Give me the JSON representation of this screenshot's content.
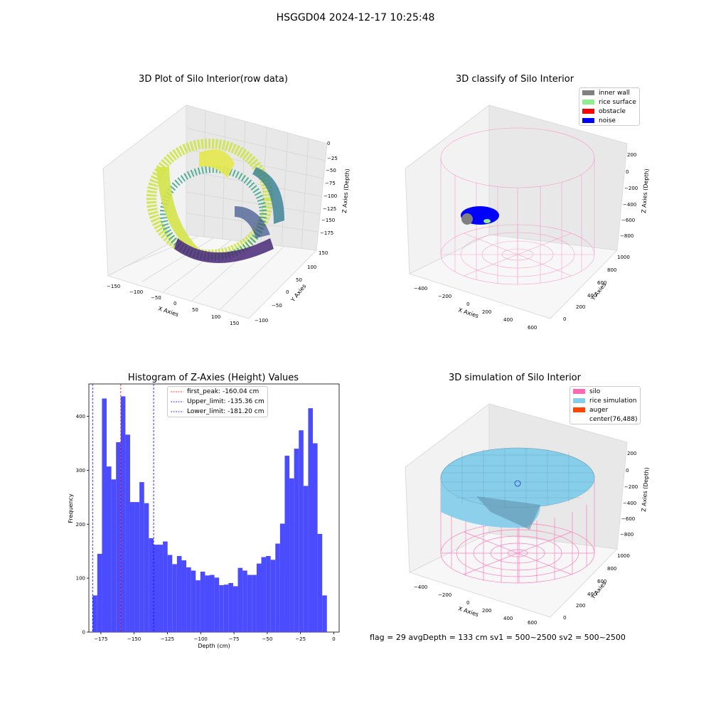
{
  "suptitle": "HSGGD04 2024-12-17 10:25:48",
  "panels": {
    "raw": {
      "title": "3D Plot of Silo Interior(row data)",
      "x_label": "X Axies",
      "y_label": "Y Axies",
      "z_label": "Z Axies (Depth)",
      "x_ticks": [
        "−150",
        "−100",
        "−50",
        "0",
        "50",
        "100",
        "150"
      ],
      "y_ticks": [
        "150",
        "100",
        "50",
        "0",
        "−50",
        "−100"
      ],
      "z_ticks": [
        "0",
        "−25",
        "−50",
        "−75",
        "−100",
        "−125",
        "−150",
        "−175"
      ]
    },
    "classify": {
      "title": "3D classify of Silo Interior",
      "x_label": "X Axies",
      "y_label": "Y Axies",
      "z_label": "Z Axies (Depth)",
      "x_ticks": [
        "−400",
        "−200",
        "0",
        "200",
        "400",
        "600"
      ],
      "y_ticks": [
        "1000",
        "800",
        "600",
        "400",
        "200",
        "0"
      ],
      "z_ticks": [
        "200",
        "0",
        "−200",
        "−400",
        "−600",
        "−800"
      ],
      "legend": [
        {
          "label": "inner wall",
          "color": "#808080"
        },
        {
          "label": "rice surface",
          "color": "#90ee90"
        },
        {
          "label": "obstacle",
          "color": "#ff0000"
        },
        {
          "label": "noise",
          "color": "#0000ff"
        }
      ]
    },
    "simulation": {
      "title": "3D simulation of Silo Interior",
      "x_label": "X Axies",
      "y_label": "Y Axies",
      "z_label": "Z Axies (Depth)",
      "x_ticks": [
        "−400",
        "−200",
        "0",
        "200",
        "400",
        "600"
      ],
      "y_ticks": [
        "1000",
        "800",
        "600",
        "400",
        "200",
        "0"
      ],
      "z_ticks": [
        "200",
        "0",
        "−200",
        "−400",
        "−600",
        "−800"
      ],
      "legend": [
        {
          "label": "silo",
          "color": "#ff69b4"
        },
        {
          "label": "rice simulation",
          "color": "#87ceeb"
        },
        {
          "label": "auger",
          "color": "#ff4500"
        },
        {
          "label": "center(76,488)",
          "color": "#ffffff"
        }
      ]
    }
  },
  "chart_data": {
    "type": "bar",
    "title": "Histogram of Z-Axies (Height) Values",
    "xlabel": "Depth (cm)",
    "ylabel": "Frequency",
    "xlim": [
      -184,
      4
    ],
    "ylim": [
      0,
      460
    ],
    "x_ticks": [
      -175,
      -150,
      -125,
      -100,
      -75,
      -50,
      -25,
      0
    ],
    "x_tick_labels": [
      "−175",
      "−150",
      "−125",
      "−100",
      "−75",
      "−50",
      "−25",
      "0"
    ],
    "y_ticks": [
      0,
      100,
      200,
      300,
      400
    ],
    "bar_color": "#4b4bff",
    "bins_start": -181.2,
    "bin_width": 3.52,
    "values": [
      68,
      145,
      433,
      307,
      283,
      352,
      437,
      366,
      241,
      241,
      278,
      239,
      174,
      162,
      162,
      168,
      143,
      126,
      141,
      133,
      120,
      114,
      96,
      112,
      105,
      106,
      101,
      87,
      88,
      91,
      85,
      119,
      114,
      106,
      106,
      127,
      139,
      141,
      134,
      164,
      201,
      327,
      285,
      340,
      374,
      271,
      415,
      350,
      182,
      68
    ],
    "lines": [
      {
        "label": "first_peak: -160.04 cm",
        "x": -160.04,
        "color": "#ff0000"
      },
      {
        "label": "Upper_limit: -135.36 cm",
        "x": -135.36,
        "color": "#0000ff"
      },
      {
        "label": "Lower_limit: -181.20 cm",
        "x": -181.2,
        "color": "#0000ff"
      }
    ],
    "grid": false,
    "legend_position": "top"
  },
  "footer": {
    "text": "flag = 29  avgDepth = 133 cm  sv1 = 500~2500  sv2 = 500~2500"
  }
}
